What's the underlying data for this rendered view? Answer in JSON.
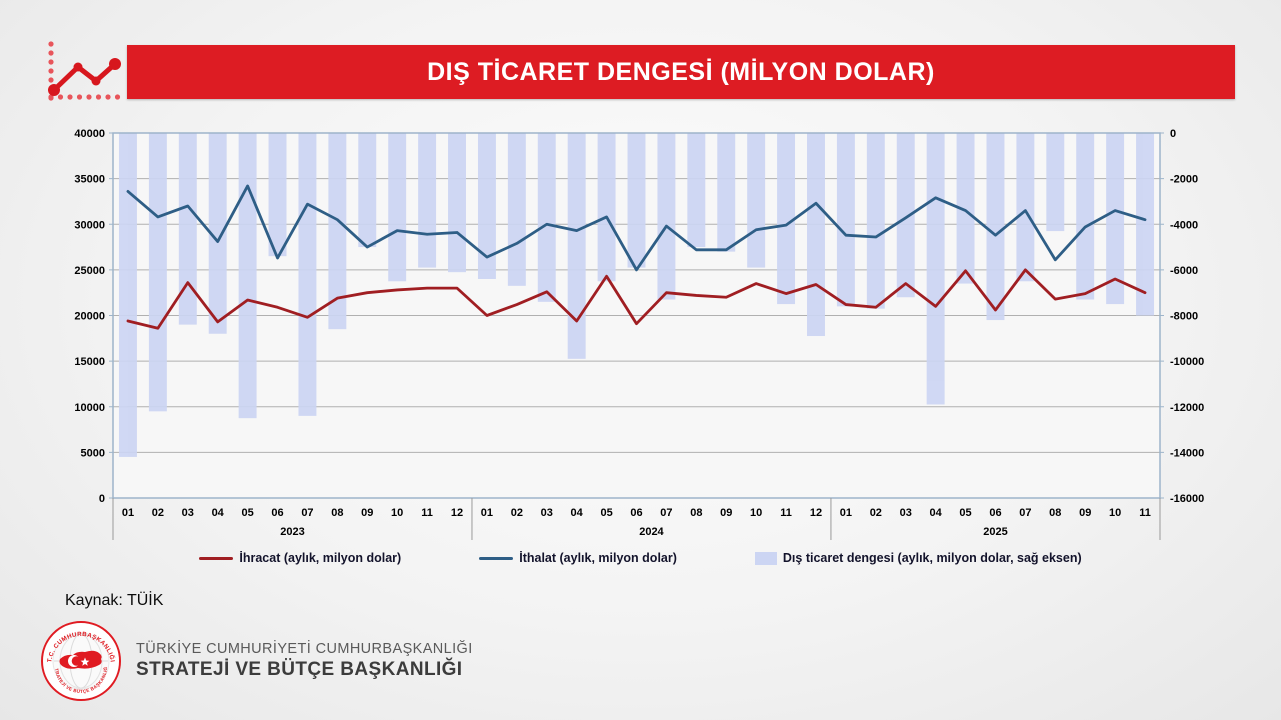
{
  "slide": {
    "title": "DIŞ TİCARET DENGESİ (MİLYON DOLAR)",
    "source_label": "Kaynak: TÜİK",
    "footer_line1": "TÜRKİYE CUMHURİYETİ CUMHURBAŞKANLIĞI",
    "footer_line2": "STRATEJİ VE BÜTÇE BAŞKANLIĞI",
    "seal_top_text": "T.C. CUMHURBAŞKANLIĞI",
    "seal_bottom_text": "STRATEJİ VE BÜTÇE BAŞKANLIĞI"
  },
  "colors": {
    "header_red": "#dd1c23",
    "export_line": "#a01e22",
    "import_line": "#2e5e86",
    "balance_bar": "#ccd5f3",
    "gridline": "#b0b0b0",
    "plot_border": "#9db4ca",
    "icon_red": "#d7171e",
    "icon_dot_red": "#e8555b"
  },
  "chart_data": {
    "type": "bar",
    "subtype": "combo-line-bar",
    "title": "DIŞ TİCARET DENGESİ (MİLYON DOLAR)",
    "grid": true,
    "legend_position": "bottom",
    "x_groups": [
      {
        "year": "2023",
        "months": [
          "01",
          "02",
          "03",
          "04",
          "05",
          "06",
          "07",
          "08",
          "09",
          "10",
          "11",
          "12"
        ]
      },
      {
        "year": "2024",
        "months": [
          "01",
          "02",
          "03",
          "04",
          "05",
          "06",
          "07",
          "08",
          "09",
          "10",
          "11",
          "12"
        ]
      },
      {
        "year": "2025",
        "months": [
          "01",
          "02",
          "03",
          "04",
          "05",
          "06",
          "07",
          "08",
          "09",
          "10",
          "11"
        ]
      }
    ],
    "left_axis": {
      "min": 0,
      "max": 40000,
      "step": 5000,
      "ticks": [
        "40000",
        "35000",
        "30000",
        "25000",
        "20000",
        "15000",
        "10000",
        "5000",
        "0"
      ]
    },
    "right_axis": {
      "min": -16000,
      "max": 0,
      "step": 2000,
      "ticks": [
        "0",
        "-2000",
        "-4000",
        "-6000",
        "-8000",
        "-10000",
        "-12000",
        "-14000",
        "-16000"
      ]
    },
    "series": [
      {
        "name": "İhracat (aylık, milyon dolar)",
        "type": "line",
        "axis": "left",
        "color": "#a01e22",
        "values": [
          19400,
          18600,
          23600,
          19300,
          21700,
          20900,
          19800,
          21900,
          22500,
          22800,
          23000,
          23000,
          20000,
          21200,
          22600,
          19400,
          24300,
          19100,
          22500,
          22200,
          22000,
          23500,
          22400,
          23400,
          21200,
          20900,
          23500,
          21000,
          24900,
          20600,
          25000,
          21800,
          22400,
          24000,
          22500
        ]
      },
      {
        "name": "İthalat (aylık, milyon dolar)",
        "type": "line",
        "axis": "left",
        "color": "#2e5e86",
        "values": [
          33600,
          30800,
          32000,
          28100,
          34200,
          26300,
          32200,
          30500,
          27500,
          29300,
          28900,
          29100,
          26400,
          27900,
          30000,
          29300,
          30800,
          25000,
          29800,
          27200,
          27200,
          29400,
          29900,
          32300,
          28800,
          28600,
          30700,
          32900,
          31500,
          28800,
          31500,
          26100,
          29700,
          31500,
          30500
        ]
      },
      {
        "name": "Dış ticaret dengesi (aylık, milyon dolar, sağ eksen)",
        "type": "bar",
        "axis": "right",
        "color": "#ccd5f3",
        "values": [
          -14200,
          -12200,
          -8400,
          -8800,
          -12500,
          -5400,
          -12400,
          -8600,
          -5000,
          -6500,
          -5900,
          -6100,
          -6400,
          -6700,
          -7400,
          -9900,
          -6500,
          -5900,
          -7300,
          -5000,
          -5200,
          -5900,
          -7500,
          -8900,
          -7600,
          -7700,
          -7200,
          -11900,
          -6600,
          -8200,
          -6500,
          -4300,
          -7300,
          -7500,
          -8000
        ]
      }
    ]
  }
}
